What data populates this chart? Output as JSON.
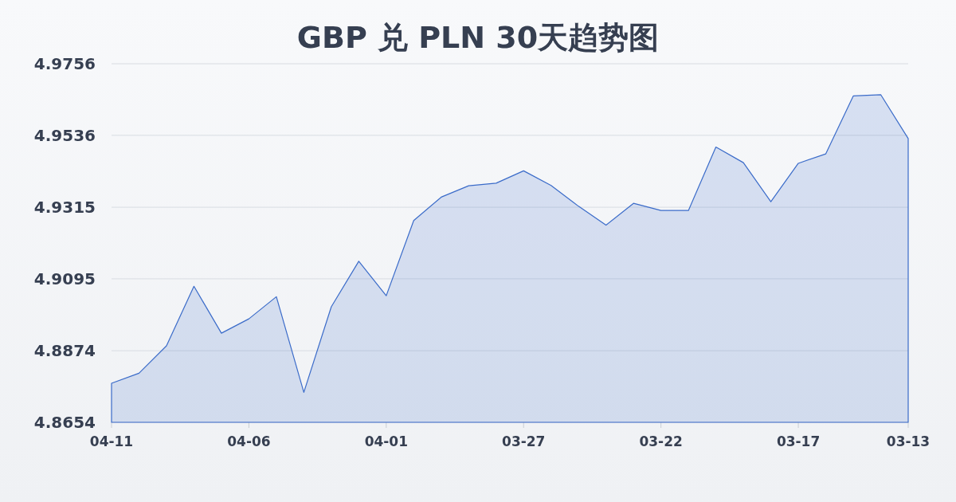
{
  "chart_data": {
    "type": "area",
    "title": "GBP 兑 PLN 30天趋势图",
    "categories": [
      "04-11",
      null,
      null,
      null,
      null,
      "04-06",
      null,
      null,
      null,
      null,
      "04-01",
      null,
      null,
      null,
      null,
      "03-27",
      null,
      null,
      null,
      null,
      "03-22",
      null,
      null,
      null,
      null,
      "03-17",
      null,
      null,
      null,
      "03-13"
    ],
    "values": [
      4.8774,
      4.8805,
      4.8889,
      4.9072,
      4.8928,
      4.8972,
      4.904,
      4.8746,
      4.9009,
      4.9149,
      4.9043,
      4.9274,
      4.9346,
      4.9381,
      4.9389,
      4.9427,
      4.9382,
      4.9318,
      4.926,
      4.9327,
      4.9305,
      4.9305,
      4.95,
      4.9452,
      4.9332,
      4.945,
      4.9479,
      4.9657,
      4.9661,
      4.9526
    ],
    "color": "#3a6bc9",
    "ylim": [
      4.8654,
      4.9756
    ],
    "yticks": [
      4.8654,
      4.8874,
      4.9095,
      4.9315,
      4.9536,
      4.9756
    ],
    "grid": "y"
  }
}
